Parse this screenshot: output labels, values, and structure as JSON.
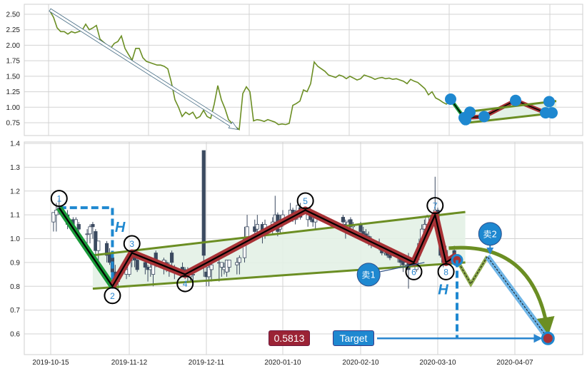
{
  "chart_data": [
    {
      "type": "line",
      "panel": "overview",
      "ylim": [
        0.62,
        2.66
      ],
      "yticks": [
        "2.50",
        "2.25",
        "2.00",
        "1.75",
        "1.50",
        "1.25",
        "1.00",
        "0.75"
      ],
      "grid": true,
      "line_color": "#6b8e23",
      "values": [
        2.55,
        2.45,
        2.28,
        2.22,
        2.22,
        2.18,
        2.22,
        2.2,
        2.22,
        2.24,
        2.34,
        2.25,
        2.28,
        2.32,
        2.1,
        2.05,
        2.0,
        1.95,
        2.03,
        2.06,
        2.15,
        1.95,
        1.85,
        1.76,
        1.95,
        1.95,
        1.8,
        1.74,
        1.72,
        1.7,
        1.68,
        1.68,
        1.66,
        1.62,
        1.4,
        1.12,
        1.0,
        0.85,
        0.92,
        0.88,
        0.92,
        0.82,
        0.85,
        0.95,
        0.85,
        0.82,
        1.05,
        1.35,
        1.12,
        0.98,
        0.8,
        0.74,
        0.68,
        0.64,
        1.22,
        1.33,
        1.25,
        0.78,
        0.8,
        0.79,
        0.77,
        0.8,
        0.78,
        0.76,
        0.72,
        0.73,
        0.72,
        0.74,
        1.03,
        1.06,
        1.1,
        1.28,
        1.25,
        1.38,
        1.73,
        1.66,
        1.62,
        1.58,
        1.52,
        1.5,
        1.48,
        1.52,
        1.5,
        1.46,
        1.5,
        1.47,
        1.44,
        1.46,
        1.52,
        1.5,
        1.48,
        1.45,
        1.47,
        1.48,
        1.46,
        1.47,
        1.45,
        1.46,
        1.44,
        1.42,
        1.38,
        1.45,
        1.42,
        1.4,
        1.35,
        1.3,
        1.2,
        1.25,
        1.15,
        1.12,
        1.08,
        1.05,
        1.1
      ],
      "trend_arrow": {
        "from": [
          0,
          2.57
        ],
        "to": [
          52.6,
          0.64
        ]
      },
      "pattern_points": [
        [
          112.2,
          1.13
        ],
        [
          116,
          0.83
        ],
        [
          117.6,
          0.92
        ],
        [
          116.4,
          0.8
        ],
        [
          121.6,
          0.85
        ],
        [
          130.4,
          1.11
        ],
        [
          138.8,
          0.91
        ],
        [
          139.8,
          1.09
        ],
        [
          140.6,
          0.91
        ]
      ],
      "pattern_channel": {
        "upper": [
          [
            116,
            0.92
          ],
          [
            141.8,
            1.1
          ]
        ],
        "lower": [
          [
            115.6,
            0.74
          ],
          [
            141.8,
            0.91
          ]
        ]
      },
      "point_color": "#1e88d0"
    },
    {
      "type": "candlestick",
      "panel": "detail",
      "ylim": [
        0.51,
        1.41
      ],
      "yticks": [
        "1.4",
        "1.3",
        "1.2",
        "1.1",
        "1.0",
        "0.9",
        "0.8",
        "0.7",
        "0.6"
      ],
      "xticks": [
        "2019-10-15",
        "2019-11-12",
        "2019-12-11",
        "2020-01-10",
        "2020-02-10",
        "2020-03-10",
        "2020-04-07"
      ],
      "grid": true,
      "columns": [
        "date",
        "open",
        "high",
        "low",
        "close"
      ],
      "candles": [
        [
          "2019-10-16",
          1.07,
          1.11,
          1.03,
          1.11
        ],
        [
          "2019-10-17",
          1.1,
          1.15,
          1.03,
          1.12
        ],
        [
          "2019-10-18",
          1.12,
          1.17,
          1.1,
          1.13
        ],
        [
          "2019-10-21",
          1.1,
          1.12,
          1.04,
          1.06
        ],
        [
          "2019-10-22",
          1.06,
          1.08,
          1.04,
          1.07
        ],
        [
          "2019-10-23",
          1.08,
          1.09,
          1.03,
          1.04
        ],
        [
          "2019-10-24",
          1.04,
          1.09,
          1.02,
          1.08
        ],
        [
          "2019-10-25",
          1.06,
          1.07,
          1.0,
          1.04
        ],
        [
          "2019-10-28",
          1.02,
          1.04,
          0.98,
          1.02
        ],
        [
          "2019-10-29",
          1.02,
          1.06,
          0.98,
          1.05
        ],
        [
          "2019-10-30",
          1.06,
          1.07,
          1.0,
          1.05
        ],
        [
          "2019-10-31",
          1.03,
          1.04,
          0.92,
          0.95
        ],
        [
          "2019-11-01",
          0.95,
          0.99,
          0.9,
          0.99
        ],
        [
          "2019-11-04",
          0.98,
          0.99,
          0.9,
          0.93
        ],
        [
          "2019-11-05",
          0.94,
          0.96,
          0.89,
          0.9
        ],
        [
          "2019-11-06",
          0.92,
          0.93,
          0.84,
          0.86
        ],
        [
          "2019-11-07",
          0.86,
          0.89,
          0.8,
          0.82
        ],
        [
          "2019-11-08",
          0.82,
          0.86,
          0.78,
          0.85
        ],
        [
          "2019-11-11",
          0.85,
          0.88,
          0.83,
          0.87
        ],
        [
          "2019-11-12",
          0.85,
          0.92,
          0.84,
          0.9
        ],
        [
          "2019-11-13",
          0.91,
          0.95,
          0.88,
          0.93
        ],
        [
          "2019-11-14",
          0.93,
          0.94,
          0.88,
          0.91
        ],
        [
          "2019-11-15",
          0.91,
          0.92,
          0.86,
          0.87
        ],
        [
          "2019-11-18",
          0.9,
          0.91,
          0.85,
          0.88
        ],
        [
          "2019-11-19",
          0.88,
          0.89,
          0.82,
          0.87
        ],
        [
          "2019-11-20",
          0.87,
          0.9,
          0.84,
          0.88
        ],
        [
          "2019-11-21",
          0.85,
          0.91,
          0.8,
          0.89
        ],
        [
          "2019-11-22",
          0.94,
          0.95,
          0.88,
          0.9
        ],
        [
          "2019-11-25",
          0.89,
          0.92,
          0.85,
          0.91
        ],
        [
          "2019-11-26",
          0.9,
          0.91,
          0.86,
          0.88
        ],
        [
          "2019-11-27",
          0.87,
          0.9,
          0.84,
          0.89
        ],
        [
          "2019-11-28",
          0.94,
          0.95,
          0.88,
          0.9
        ],
        [
          "2019-11-29",
          0.87,
          0.89,
          0.83,
          0.88
        ],
        [
          "2019-12-02",
          0.88,
          0.9,
          0.84,
          0.86
        ],
        [
          "2019-12-03",
          0.87,
          0.88,
          0.83,
          0.86
        ],
        [
          "2019-12-04",
          0.85,
          0.88,
          0.82,
          0.85
        ],
        [
          "2019-12-05",
          0.84,
          0.87,
          0.82,
          0.86
        ],
        [
          "2019-12-06",
          0.85,
          0.86,
          0.82,
          0.85
        ],
        [
          "2019-12-10",
          1.37,
          1.37,
          0.84,
          0.93
        ],
        [
          "2019-12-11",
          0.86,
          0.89,
          0.8,
          0.84
        ],
        [
          "2019-12-12",
          0.84,
          0.9,
          0.8,
          0.88
        ],
        [
          "2019-12-13",
          0.87,
          0.9,
          0.82,
          0.89
        ],
        [
          "2019-12-16",
          0.9,
          0.92,
          0.82,
          0.9
        ],
        [
          "2019-12-17",
          0.88,
          0.9,
          0.84,
          0.9
        ],
        [
          "2019-12-18",
          0.87,
          0.9,
          0.85,
          0.88
        ],
        [
          "2019-12-19",
          0.86,
          0.91,
          0.84,
          0.91
        ],
        [
          "2019-12-20",
          0.88,
          0.91,
          0.86,
          0.91
        ],
        [
          "2019-12-23",
          0.89,
          0.92,
          0.85,
          0.9
        ],
        [
          "2019-12-24",
          0.9,
          0.93,
          0.85,
          0.92
        ],
        [
          "2019-12-26",
          0.92,
          1.05,
          0.9,
          1.0
        ],
        [
          "2019-12-27",
          1.0,
          1.1,
          0.98,
          1.05
        ],
        [
          "2019-12-30",
          1.05,
          1.08,
          1.0,
          1.03
        ],
        [
          "2019-12-31",
          1.04,
          1.1,
          1.02,
          1.06
        ],
        [
          "2020-01-02",
          1.06,
          1.07,
          0.98,
          1.02
        ],
        [
          "2020-01-03",
          1.02,
          1.08,
          1.0,
          1.06
        ],
        [
          "2020-01-06",
          1.06,
          1.09,
          1.02,
          1.07
        ],
        [
          "2020-01-07",
          1.07,
          1.18,
          1.05,
          1.1
        ],
        [
          "2020-01-08",
          1.1,
          1.11,
          1.01,
          1.03
        ],
        [
          "2020-01-09",
          1.04,
          1.1,
          1.02,
          1.08
        ],
        [
          "2020-01-10",
          1.08,
          1.12,
          1.05,
          1.1
        ],
        [
          "2020-01-13",
          1.1,
          1.15,
          1.07,
          1.12
        ],
        [
          "2020-01-14",
          1.12,
          1.13,
          1.07,
          1.09
        ],
        [
          "2020-01-15",
          1.08,
          1.12,
          1.06,
          1.1
        ],
        [
          "2020-01-16",
          1.1,
          1.16,
          1.08,
          1.14
        ],
        [
          "2020-01-17",
          1.13,
          1.15,
          1.08,
          1.09
        ],
        [
          "2020-01-20",
          1.08,
          1.12,
          1.05,
          1.1
        ],
        [
          "2020-01-21",
          1.1,
          1.13,
          1.07,
          1.08
        ],
        [
          "2020-01-22",
          1.08,
          1.1,
          1.05,
          1.07
        ],
        [
          "2020-01-23",
          1.07,
          1.1,
          1.04,
          1.09
        ],
        [
          "2020-02-03",
          1.09,
          1.1,
          1.04,
          1.07
        ],
        [
          "2020-02-04",
          1.06,
          1.08,
          1.0,
          1.04
        ],
        [
          "2020-02-05",
          1.04,
          1.08,
          1.02,
          1.07
        ],
        [
          "2020-02-06",
          1.08,
          1.09,
          1.03,
          1.05
        ],
        [
          "2020-02-07",
          1.05,
          1.07,
          1.02,
          1.06
        ],
        [
          "2020-02-10",
          1.06,
          1.07,
          1.02,
          1.03
        ],
        [
          "2020-02-11",
          1.03,
          1.05,
          1.0,
          1.02
        ],
        [
          "2020-02-12",
          1.02,
          1.04,
          0.98,
          1.0
        ],
        [
          "2020-02-13",
          1.01,
          1.03,
          0.97,
          0.99
        ],
        [
          "2020-02-14",
          0.99,
          1.01,
          0.96,
          0.98
        ],
        [
          "2020-02-17",
          0.98,
          1.0,
          0.95,
          0.96
        ],
        [
          "2020-02-18",
          0.96,
          0.98,
          0.93,
          0.94
        ],
        [
          "2020-02-19",
          0.94,
          0.97,
          0.93,
          0.96
        ],
        [
          "2020-02-20",
          0.96,
          0.97,
          0.92,
          0.93
        ],
        [
          "2020-02-21",
          0.93,
          0.95,
          0.91,
          0.92
        ],
        [
          "2020-02-24",
          0.92,
          0.94,
          0.9,
          0.93
        ],
        [
          "2020-02-25",
          0.92,
          0.93,
          0.88,
          0.9
        ],
        [
          "2020-02-26",
          0.91,
          0.93,
          0.86,
          0.89
        ],
        [
          "2020-02-27",
          0.89,
          0.91,
          0.87,
          0.9
        ],
        [
          "2020-02-28",
          0.9,
          0.94,
          0.79,
          0.87
        ],
        [
          "2020-03-02",
          0.87,
          0.95,
          0.86,
          0.93
        ],
        [
          "2020-03-03",
          0.93,
          1.0,
          0.91,
          0.98
        ],
        [
          "2020-03-04",
          0.98,
          1.06,
          0.96,
          1.04
        ],
        [
          "2020-03-05",
          1.04,
          1.08,
          1.0,
          1.06
        ],
        [
          "2020-03-06",
          1.06,
          1.1,
          1.03,
          1.09
        ],
        [
          "2020-03-09",
          1.09,
          1.26,
          1.05,
          1.12
        ],
        [
          "2020-03-10",
          1.12,
          1.13,
          1.0,
          1.02
        ],
        [
          "2020-03-11",
          1.02,
          1.03,
          0.92,
          0.93
        ],
        [
          "2020-03-12",
          0.93,
          0.95,
          0.88,
          0.9
        ],
        [
          "2020-03-13",
          0.9,
          0.97,
          0.89,
          0.95
        ],
        [
          "2020-03-16",
          0.95,
          0.97,
          0.91,
          0.93
        ]
      ],
      "wave_points": [
        {
          "label": "1",
          "date": "2019-10-18",
          "value": 1.13
        },
        {
          "label": "2",
          "date": "2019-11-06",
          "value": 0.8
        },
        {
          "label": "3",
          "date": "2019-11-13",
          "value": 0.94
        },
        {
          "label": "4",
          "date": "2019-12-03",
          "value": 0.85
        },
        {
          "label": "5",
          "date": "2020-01-19",
          "value": 1.12
        },
        {
          "label": "6",
          "date": "2020-03-01",
          "value": 0.9
        },
        {
          "label": "7",
          "date": "2020-03-09",
          "value": 1.1
        },
        {
          "label": "8",
          "date": "2020-03-13",
          "value": 0.9
        }
      ],
      "wave_end": {
        "date": "2020-03-17",
        "value": 0.93
      },
      "channel": {
        "upper": [
          [
            "2019-10-30",
            0.93
          ],
          [
            "2020-03-20",
            1.112
          ]
        ],
        "lower": [
          [
            "2019-10-30",
            0.79
          ],
          [
            "2020-03-20",
            0.9
          ]
        ]
      },
      "height_markers": [
        {
          "label": "H",
          "date": "2019-11-10",
          "value": 1.05
        },
        {
          "label": "H",
          "date": "2020-03-14",
          "value": 0.835
        }
      ],
      "sell_signals": [
        {
          "label": "卖1",
          "date": "2020-02-13",
          "value": 0.849,
          "pointer": [
            "2020-03-05",
            0.9
          ]
        },
        {
          "label": "卖2",
          "date": "2020-03-29",
          "value": 1.02,
          "pointer": [
            "2020-03-29",
            0.93
          ]
        }
      ],
      "projection": [
        [
          "2020-03-17",
          0.91
        ],
        [
          "2020-03-22",
          0.81
        ],
        [
          "2020-03-28",
          0.925
        ],
        [
          "2020-04-19",
          0.5813
        ]
      ],
      "target": {
        "label": "Target",
        "value_label": "0.5813",
        "value": 0.5813,
        "date": "2020-04-19"
      },
      "colors": {
        "bull_wave": "#a83236",
        "bear_wave": "#1a9a3a",
        "channel": "#6b8e23",
        "channel_fill": "#e3f1e6",
        "annotation_blue": "#1e88d0",
        "candle": "#3b4a60",
        "target_box": "#9b2335"
      }
    }
  ]
}
